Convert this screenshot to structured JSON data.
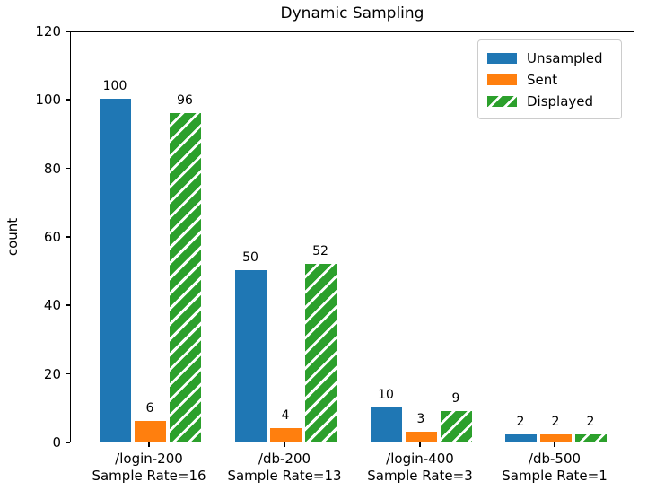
{
  "chart_data": {
    "type": "bar",
    "title": "Dynamic Sampling",
    "xlabel": "",
    "ylabel": "count",
    "ylim": [
      0,
      120
    ],
    "yticks": [
      0,
      20,
      40,
      60,
      80,
      100,
      120
    ],
    "grid": false,
    "bar_value_labels": true,
    "legend_position": "upper right",
    "categories": [
      {
        "label": "/login-200",
        "sublabel": "Sample Rate=16"
      },
      {
        "label": "/db-200",
        "sublabel": "Sample Rate=13"
      },
      {
        "label": "/login-400",
        "sublabel": "Sample Rate=3"
      },
      {
        "label": "/db-500",
        "sublabel": "Sample Rate=1"
      }
    ],
    "series": [
      {
        "name": "Unsampled",
        "color": "#1f77b4",
        "hatch": null,
        "hatch_color": null,
        "values": [
          100,
          50,
          10,
          2
        ]
      },
      {
        "name": "Sent",
        "color": "#ff7f0e",
        "hatch": null,
        "hatch_color": null,
        "values": [
          6,
          4,
          3,
          2
        ]
      },
      {
        "name": "Displayed",
        "color": "#2ca02c",
        "hatch": "/",
        "hatch_color": "#ffffff",
        "values": [
          96,
          52,
          9,
          2
        ]
      }
    ]
  },
  "style": {
    "background": "#ffffff",
    "text_color": "#000000",
    "spine_color": "#000000",
    "legend_border_color": "#cccccc"
  }
}
